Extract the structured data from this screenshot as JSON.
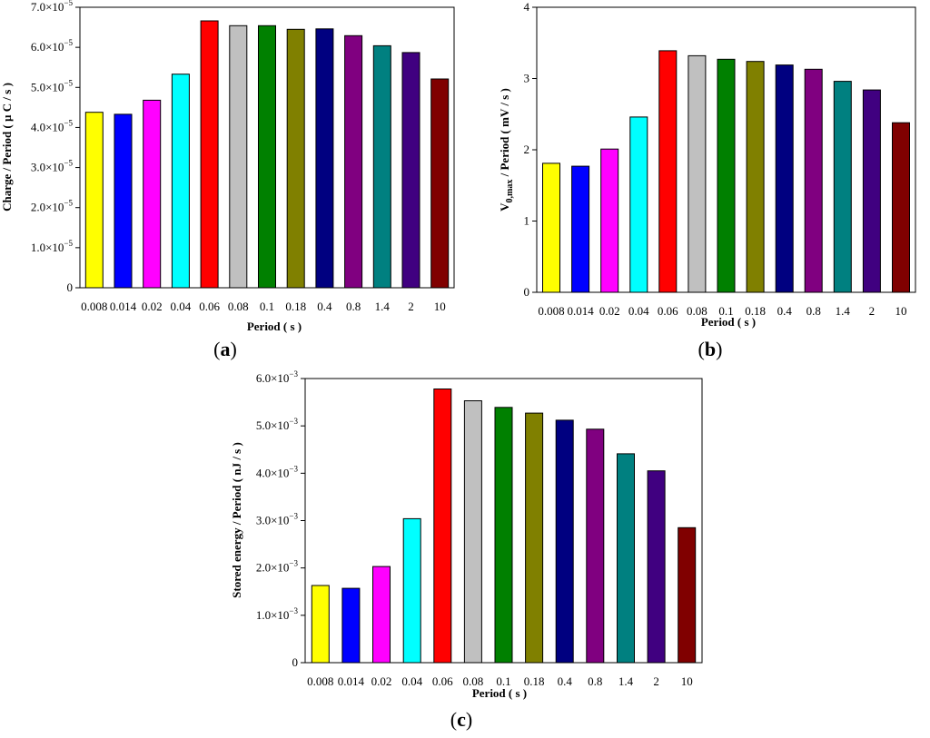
{
  "chart_data": [
    {
      "type": "bar",
      "panel_label": "a",
      "categories": [
        "0.008",
        "0.014",
        "0.02",
        "0.04",
        "0.06",
        "0.08",
        "0.1",
        "0.18",
        "0.4",
        "0.8",
        "1.4",
        "2",
        "10"
      ],
      "values": [
        4.38e-05,
        4.33e-05,
        4.68e-05,
        5.33e-05,
        6.66e-05,
        6.54e-05,
        6.54e-05,
        6.45e-05,
        6.46e-05,
        6.29e-05,
        6.04e-05,
        5.87e-05,
        5.21e-05
      ],
      "colors": [
        "#ffff00",
        "#0000ff",
        "#ff00ff",
        "#00ffff",
        "#ff0000",
        "#c0c0c0",
        "#008000",
        "#808000",
        "#000080",
        "#800080",
        "#008080",
        "#400080",
        "#800000"
      ],
      "xlabel": "Period ( s )",
      "ylabel": "Charge / Period ( µ C / s )",
      "ylim": [
        0,
        7e-05
      ],
      "yticks": [
        {
          "value": 0,
          "label": "0",
          "mult": "",
          "exp": ""
        },
        {
          "value": 1e-05,
          "label": "1.0",
          "mult": "×10",
          "exp": "−5"
        },
        {
          "value": 2e-05,
          "label": "2.0",
          "mult": "×10",
          "exp": "−5"
        },
        {
          "value": 3e-05,
          "label": "3.0",
          "mult": "×10",
          "exp": "−5"
        },
        {
          "value": 4e-05,
          "label": "4.0",
          "mult": "×10",
          "exp": "−5"
        },
        {
          "value": 5e-05,
          "label": "5.0",
          "mult": "×10",
          "exp": "−5"
        },
        {
          "value": 6e-05,
          "label": "6.0",
          "mult": "×10",
          "exp": "−5"
        },
        {
          "value": 7e-05,
          "label": "7.0",
          "mult": "×10",
          "exp": "−5"
        }
      ],
      "grid": false
    },
    {
      "type": "bar",
      "panel_label": "b",
      "categories": [
        "0.008",
        "0.014",
        "0.02",
        "0.04",
        "0.06",
        "0.08",
        "0.1",
        "0.18",
        "0.4",
        "0.8",
        "1.4",
        "2",
        "10"
      ],
      "values": [
        1.81,
        1.77,
        2.01,
        2.46,
        3.39,
        3.32,
        3.27,
        3.24,
        3.19,
        3.13,
        2.96,
        2.84,
        2.38
      ],
      "colors": [
        "#ffff00",
        "#0000ff",
        "#ff00ff",
        "#00ffff",
        "#ff0000",
        "#c0c0c0",
        "#008000",
        "#808000",
        "#000080",
        "#800080",
        "#008080",
        "#400080",
        "#800000"
      ],
      "xlabel": "Period ( s )",
      "ylabel_main": "V",
      "ylabel_sub": "0,max",
      "ylabel_rest": " / Period ( mV / s )",
      "ylim": [
        0,
        4
      ],
      "yticks": [
        {
          "value": 0,
          "label": "0",
          "mult": "",
          "exp": ""
        },
        {
          "value": 1,
          "label": "1",
          "mult": "",
          "exp": ""
        },
        {
          "value": 2,
          "label": "2",
          "mult": "",
          "exp": ""
        },
        {
          "value": 3,
          "label": "3",
          "mult": "",
          "exp": ""
        },
        {
          "value": 4,
          "label": "4",
          "mult": "",
          "exp": ""
        }
      ],
      "grid": false
    },
    {
      "type": "bar",
      "panel_label": "c",
      "categories": [
        "0.008",
        "0.014",
        "0.02",
        "0.04",
        "0.06",
        "0.08",
        "0.1",
        "0.18",
        "0.4",
        "0.8",
        "1.4",
        "2",
        "10"
      ],
      "values": [
        0.00163,
        0.00157,
        0.00203,
        0.00304,
        0.00578,
        0.00553,
        0.00539,
        0.00527,
        0.00512,
        0.00493,
        0.00441,
        0.00405,
        0.00285
      ],
      "colors": [
        "#ffff00",
        "#0000ff",
        "#ff00ff",
        "#00ffff",
        "#ff0000",
        "#c0c0c0",
        "#008000",
        "#808000",
        "#000080",
        "#800080",
        "#008080",
        "#400080",
        "#800000"
      ],
      "xlabel": "Period ( s )",
      "ylabel": "Stored energy / Period ( nJ / s )",
      "ylim": [
        0,
        0.006
      ],
      "yticks": [
        {
          "value": 0,
          "label": "0",
          "mult": "",
          "exp": ""
        },
        {
          "value": 0.001,
          "label": "1.0",
          "mult": "×10",
          "exp": "−3"
        },
        {
          "value": 0.002,
          "label": "2.0",
          "mult": "×10",
          "exp": "−3"
        },
        {
          "value": 0.003,
          "label": "3.0",
          "mult": "×10",
          "exp": "−3"
        },
        {
          "value": 0.004,
          "label": "4.0",
          "mult": "×10",
          "exp": "−3"
        },
        {
          "value": 0.005,
          "label": "5.0",
          "mult": "×10",
          "exp": "−3"
        },
        {
          "value": 0.006,
          "label": "6.0",
          "mult": "×10",
          "exp": "−3"
        }
      ],
      "grid": false
    }
  ]
}
